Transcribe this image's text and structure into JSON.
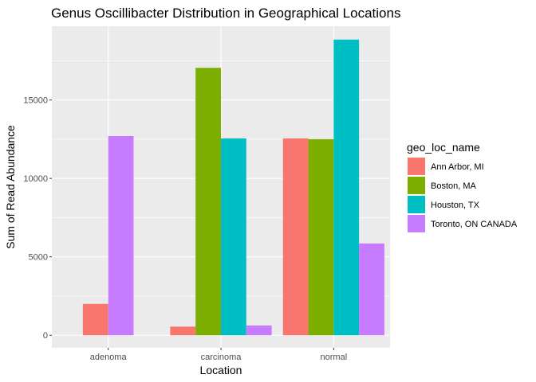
{
  "chart_data": {
    "type": "bar",
    "title": "Genus Oscillibacter Distribution in Geographical Locations",
    "xlabel": "Location",
    "ylabel": "Sum of Read Abundance",
    "categories": [
      "adenoma",
      "carcinoma",
      "normal"
    ],
    "ylim": [
      -800,
      19700
    ],
    "yticks": [
      0,
      5000,
      10000,
      15000
    ],
    "ytick_labels": [
      "0",
      "5000",
      "10000",
      "15000"
    ],
    "grid": true,
    "legend": {
      "title": "geo_loc_name",
      "position": "right"
    },
    "series": [
      {
        "name": "Ann Arbor, MI",
        "color": "#F8766D",
        "values": [
          2000,
          550,
          12550
        ]
      },
      {
        "name": "Boston, MA",
        "color": "#7CAE00",
        "values": [
          null,
          17050,
          12500
        ]
      },
      {
        "name": "Houston, TX",
        "color": "#00BFC4",
        "values": [
          null,
          12550,
          18850
        ]
      },
      {
        "name": "Toronto, ON CANADA",
        "color": "#C77CFF",
        "values": [
          12700,
          620,
          5850
        ]
      }
    ]
  }
}
